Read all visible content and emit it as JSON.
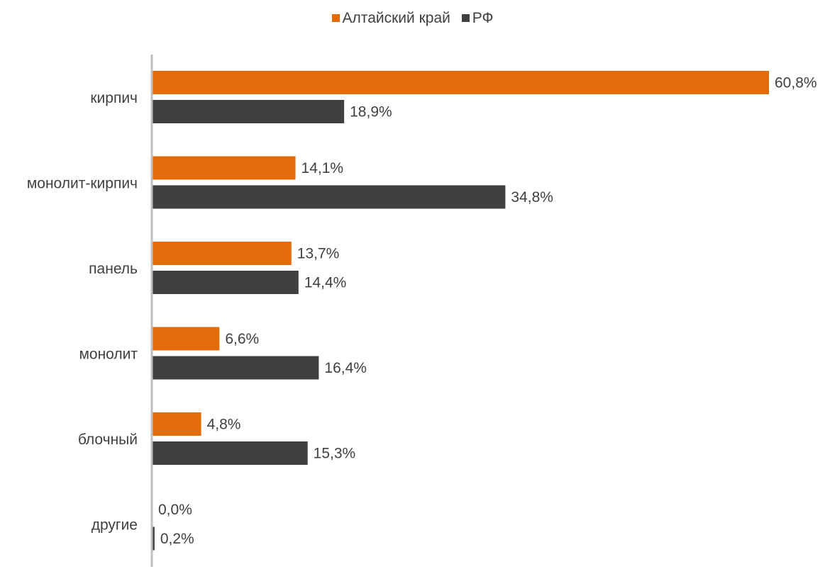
{
  "chart_data": {
    "type": "bar",
    "orientation": "horizontal",
    "categories": [
      "кирпич",
      "монолит-кирпич",
      "панель",
      "монолит",
      "блочный",
      "другие"
    ],
    "series": [
      {
        "name": "Алтайский край",
        "color": "#E36C0A",
        "values": [
          60.8,
          14.1,
          13.7,
          6.6,
          4.8,
          0.0
        ],
        "labels": [
          "60,8%",
          "14,1%",
          "13,7%",
          "6,6%",
          "4,8%",
          "0,0%"
        ]
      },
      {
        "name": "РФ",
        "color": "#404040",
        "values": [
          18.9,
          34.8,
          14.4,
          16.4,
          15.3,
          0.2
        ],
        "labels": [
          "18,9%",
          "34,8%",
          "14,4%",
          "16,4%",
          "15,3%",
          "0,2%"
        ]
      }
    ],
    "legend_position": "top",
    "grid": false,
    "xlim": [
      0,
      61
    ]
  }
}
